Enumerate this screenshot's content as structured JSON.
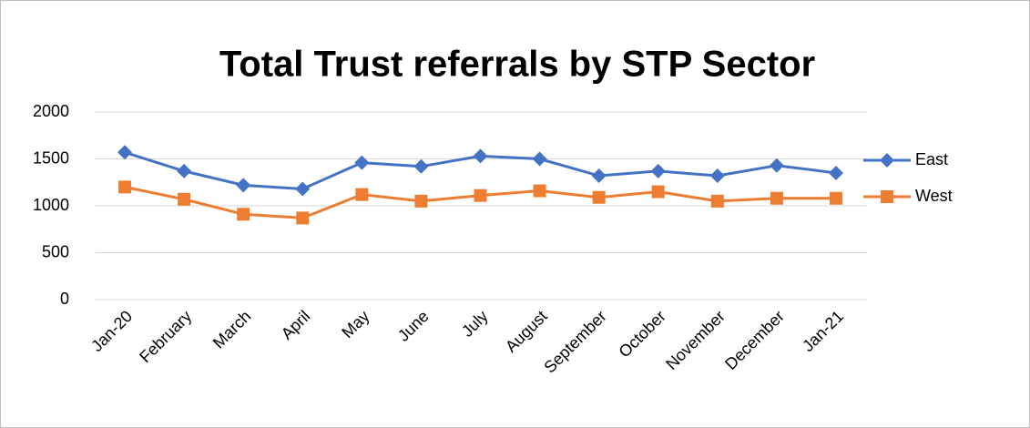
{
  "chart_data": {
    "type": "line",
    "title": "Total Trust referrals by STP Sector",
    "categories": [
      "Jan-20",
      "February",
      "March",
      "April",
      "May",
      "June",
      "July",
      "August",
      "September",
      "October",
      "November",
      "December",
      "Jan-21"
    ],
    "series": [
      {
        "name": "East",
        "color": "#4472c4",
        "marker": "diamond",
        "values": [
          1570,
          1370,
          1220,
          1180,
          1460,
          1420,
          1530,
          1500,
          1320,
          1370,
          1320,
          1430,
          1350
        ]
      },
      {
        "name": "West",
        "color": "#ed7d31",
        "marker": "square",
        "values": [
          1200,
          1070,
          910,
          870,
          1120,
          1050,
          1110,
          1160,
          1090,
          1150,
          1050,
          1080,
          1080
        ]
      }
    ],
    "ylim": [
      0,
      2000
    ],
    "yticks": [
      0,
      500,
      1000,
      1500,
      2000
    ],
    "grid": true,
    "legend": "right"
  }
}
